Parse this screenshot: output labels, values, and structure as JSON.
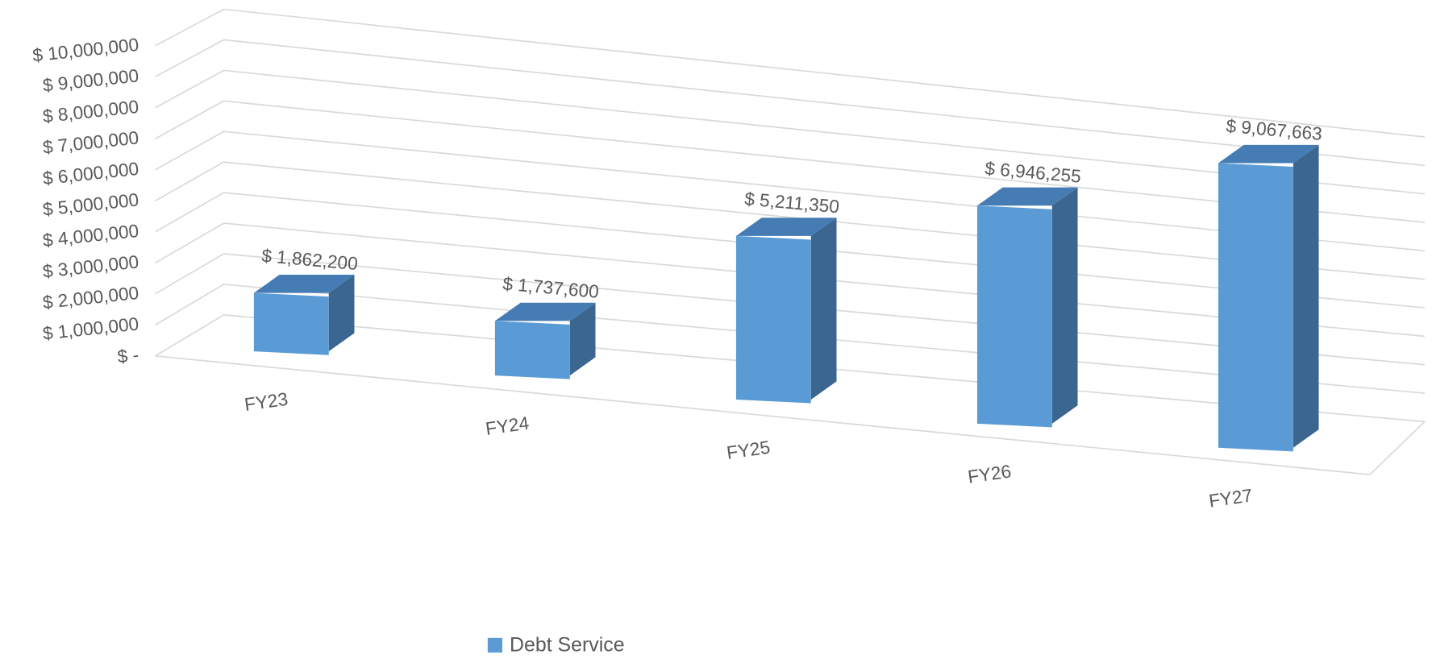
{
  "chart_data": {
    "type": "bar3d",
    "categories": [
      "FY23",
      "FY24",
      "FY25",
      "FY26",
      "FY27"
    ],
    "series": [
      {
        "name": "Debt Service",
        "color": "#5b9bd5",
        "values": [
          1862200,
          1737600,
          5211350,
          6946255,
          9067663
        ],
        "value_labels": [
          "$ 1,862,200",
          "$ 1,737,600",
          "$ 5,211,350",
          "$ 6,946,255",
          "$ 9,067,663"
        ]
      }
    ],
    "ylim": [
      0,
      10000000
    ],
    "yticks": [
      {
        "value": 0,
        "label": "$ -"
      },
      {
        "value": 1000000,
        "label": "$ 1,000,000"
      },
      {
        "value": 2000000,
        "label": "$ 2,000,000"
      },
      {
        "value": 3000000,
        "label": "$ 3,000,000"
      },
      {
        "value": 4000000,
        "label": "$ 4,000,000"
      },
      {
        "value": 5000000,
        "label": "$ 5,000,000"
      },
      {
        "value": 6000000,
        "label": "$ 6,000,000"
      },
      {
        "value": 7000000,
        "label": "$ 7,000,000"
      },
      {
        "value": 8000000,
        "label": "$ 8,000,000"
      },
      {
        "value": 9000000,
        "label": "$ 9,000,000"
      },
      {
        "value": 10000000,
        "label": "$ 10,000,000"
      }
    ],
    "grid": true,
    "legend": "bottom"
  }
}
